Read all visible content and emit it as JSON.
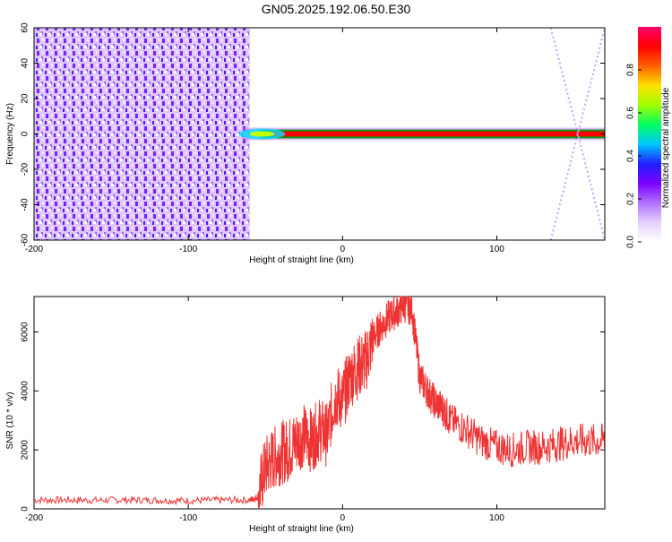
{
  "title": "GN05.2025.192.06.50.E30",
  "charts": [
    {
      "type": "heatmap",
      "xlabel": "Height of straight line (km)",
      "ylabel": "Frequency (Hz)",
      "xlim": [
        -200,
        170
      ],
      "ylim": [
        -60,
        60
      ],
      "xticks": [
        -200,
        -100,
        0,
        100
      ],
      "yticks": [
        60,
        40,
        20,
        0,
        -20,
        -40,
        -60
      ],
      "colorbar": {
        "label": "Normalized spectral amplitude",
        "range": [
          0,
          1
        ],
        "ticks": [
          0.0,
          0.2,
          0.4,
          0.6,
          0.8
        ],
        "tick_labels": [
          "0.0",
          "0.2",
          "0.4",
          "0.6",
          "0.8"
        ],
        "colors": [
          "#ffffff",
          "#e6d0ff",
          "#b070ff",
          "#7a00ff",
          "#2020ff",
          "#00c8ff",
          "#00ff60",
          "#a0ff00",
          "#ffe000",
          "#ff6000",
          "#ff0000",
          "#ff0070"
        ]
      },
      "regions": [
        {
          "name": "broadband noise",
          "x": [
            -200,
            -60
          ],
          "y": [
            -60,
            60
          ],
          "level": 0.15
        },
        {
          "name": "carrier line",
          "x": [
            -65,
            170
          ],
          "y": [
            -2,
            2
          ],
          "level": 0.95
        },
        {
          "name": "sidelobe trace",
          "x": [
            135,
            170
          ],
          "y": [
            -60,
            60
          ],
          "level": 0.05
        }
      ],
      "legend": "colorbar-right",
      "grid": false
    },
    {
      "type": "line",
      "xlabel": "Height of straight line (km)",
      "ylabel": "SNR (10 * v/v)",
      "xlim": [
        -200,
        170
      ],
      "ylim": [
        0,
        7200
      ],
      "xticks": [
        -200,
        -100,
        0,
        100
      ],
      "yticks": [
        0,
        2000,
        4000,
        6000
      ],
      "series": [
        {
          "color": "#ee3333",
          "x": [
            -200,
            -180,
            -160,
            -140,
            -120,
            -100,
            -80,
            -60,
            -55,
            -50,
            -45,
            -40,
            -35,
            -30,
            -25,
            -20,
            -15,
            -10,
            -5,
            0,
            5,
            10,
            15,
            20,
            25,
            30,
            35,
            40,
            45,
            50,
            55,
            60,
            65,
            70,
            80,
            90,
            100,
            110,
            120,
            130,
            140,
            150,
            160,
            170
          ],
          "values": [
            300,
            300,
            290,
            300,
            290,
            280,
            300,
            300,
            400,
            1400,
            1700,
            1900,
            2000,
            2300,
            2500,
            2300,
            2700,
            2500,
            3800,
            3700,
            4500,
            4800,
            5000,
            5800,
            6200,
            6500,
            6700,
            6900,
            6800,
            4500,
            4000,
            3600,
            3400,
            3000,
            2700,
            2300,
            2100,
            2000,
            2100,
            2100,
            2200,
            2300,
            2300,
            2300
          ]
        }
      ],
      "grid": false
    }
  ]
}
